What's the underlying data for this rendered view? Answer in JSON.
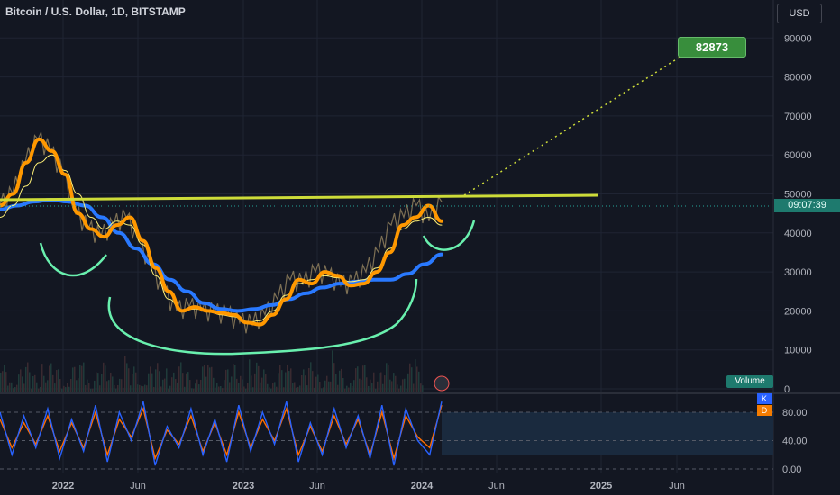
{
  "header": {
    "title": "Bitcoin / U.S. Dollar, 1D, BITSTAMP",
    "currency": "USD"
  },
  "labels": {
    "volume": "Volume",
    "k": "K",
    "d": "D",
    "target": "82873",
    "countdown": "09:07:39"
  },
  "colors": {
    "bg": "#131722",
    "grid": "#1f2433",
    "price": "#8a7a5a",
    "ma_fast": "#ff9800",
    "ma_slow": "#2979ff",
    "ma_thin": "#fff176",
    "resistance": "#cddc39",
    "projection": "#cddc39",
    "cup": "#69f0ae",
    "stoch_k": "#2962ff",
    "stoch_d": "#ff6d00"
  },
  "chart_data": [
    {
      "type": "line",
      "x_ticks": [
        "2022",
        "Jun",
        "2023",
        "Jun",
        "2024",
        "Jun",
        "2025",
        "Jun"
      ],
      "y_ticks": [
        "90000",
        "80000",
        "70000",
        "60000",
        "50000",
        "40000",
        "30000",
        "20000",
        "10000",
        "0"
      ],
      "ylim": [
        0,
        95000
      ],
      "series": [
        {
          "values": [
            47000,
            50000,
            58000,
            64000,
            61000,
            55000,
            45000,
            41000,
            39000,
            42000,
            44000,
            38000,
            31000,
            25000,
            20000,
            21000,
            20000,
            19500,
            19000,
            17000,
            16500,
            19000,
            23000,
            28000,
            27000,
            30000,
            29000,
            26500,
            27000,
            30000,
            35000,
            42000,
            44000,
            47000,
            43000,
            48000
          ]
        },
        {
          "values": [
            44000,
            47000,
            52000,
            58000,
            60000,
            56000,
            50000,
            44000,
            41000,
            43000,
            42000,
            37000,
            29000,
            23000,
            20000,
            20500,
            20000,
            19000,
            18500,
            17000,
            17500,
            20000,
            24000,
            27000,
            28000,
            29000,
            28500,
            27500,
            28000,
            31000,
            36000,
            41000,
            43000,
            44000,
            42000
          ]
        },
        {
          "values": [
            46000,
            47000,
            48000,
            48500,
            48000,
            47000,
            44000,
            40000,
            36000,
            32000,
            28000,
            25000,
            22000,
            20500,
            20000,
            20500,
            21500,
            23000,
            24500,
            26000,
            27000,
            27500,
            28000,
            28000,
            29500,
            32000,
            34500
          ]
        },
        {
          "values": [
            48000,
            48200,
            48400,
            48600,
            48800,
            49000,
            49200
          ]
        }
      ],
      "target_value": 82873
    },
    {
      "type": "line",
      "y_ticks": [
        "80.00",
        "40.00",
        "0.00"
      ],
      "ylim": [
        0,
        100
      ],
      "series": [
        {
          "name": "K",
          "values": [
            80,
            20,
            75,
            30,
            85,
            15,
            70,
            25,
            90,
            10,
            80,
            40,
            95,
            5,
            60,
            30,
            85,
            20,
            70,
            10,
            90,
            25,
            80,
            35,
            95,
            10,
            65,
            20,
            85,
            30,
            75,
            15,
            90,
            5,
            85,
            40,
            20,
            95
          ]
        },
        {
          "name": "D",
          "values": [
            70,
            30,
            65,
            35,
            75,
            25,
            65,
            30,
            80,
            20,
            70,
            45,
            85,
            15,
            55,
            35,
            75,
            25,
            65,
            20,
            80,
            30,
            70,
            40,
            85,
            20,
            60,
            25,
            75,
            35,
            70,
            20,
            80,
            15,
            75,
            45,
            30,
            90
          ]
        }
      ]
    }
  ]
}
